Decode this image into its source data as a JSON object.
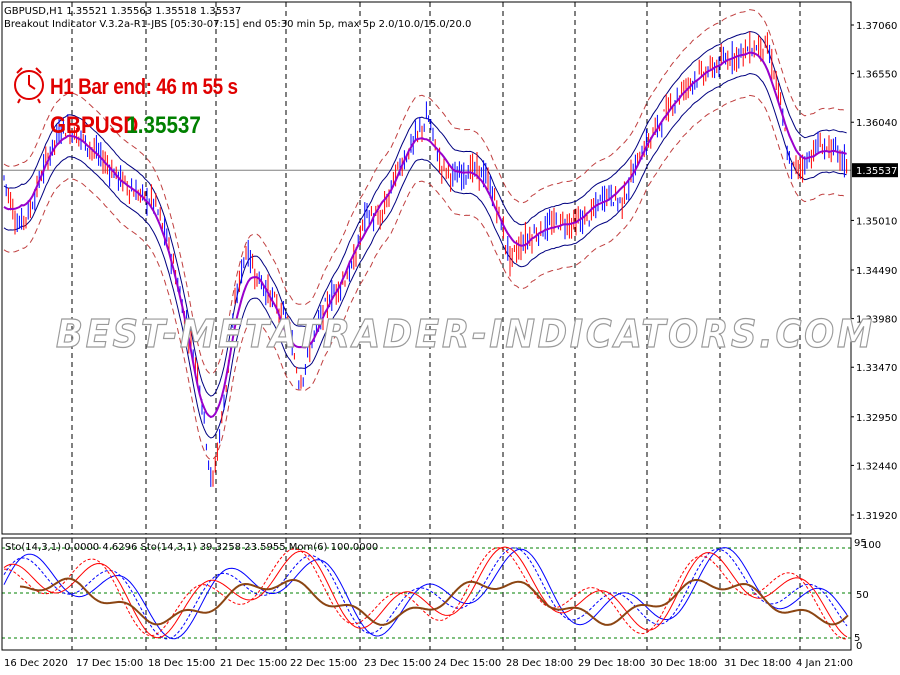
{
  "header": {
    "symbol_line": "GBPUSD,H1  1.35521 1.35563 1.35518 1.35537",
    "indicator_line": "Breakout Indicator V.3.2a-R1-JBS [05:30-07:15] end 05:30 min 5p, max 5p 2.0/10.0/15.0/20.0"
  },
  "overlay": {
    "timer_text": "H1 Bar end: 46 m 55 s",
    "symbol": "GBPUSD",
    "price": "1.35537",
    "clock_icon": "alarm-clock-icon"
  },
  "watermark": "BEST-METATRADER-INDICATORS.COM",
  "price_axis": {
    "labels": [
      "1.37060",
      "1.36550",
      "1.36040",
      "1.35537",
      "1.35010",
      "1.34490",
      "1.33980",
      "1.33470",
      "1.32950",
      "1.32440",
      "1.31920"
    ],
    "current_price": "1.35537"
  },
  "time_axis": {
    "labels": [
      "16 Dec 2020",
      "17 Dec 15:00",
      "18 Dec 15:00",
      "21 Dec 15:00",
      "22 Dec 15:00",
      "23 Dec 15:00",
      "24 Dec 15:00",
      "28 Dec 18:00",
      "29 Dec 18:00",
      "30 Dec 18:00",
      "31 Dec 18:00",
      "4 Jan 21:00"
    ]
  },
  "sub_window": {
    "header": "Sto(14,3,1) 0.0000 4.6296  Sto(14,3,1) 39.3258 23.5955  Mom(6) 100.0000",
    "scale_labels": [
      "95",
      "100",
      "50",
      "5",
      "0"
    ]
  },
  "colors": {
    "bull": "#0000ff",
    "bear": "#ff0000",
    "ma_purple": "#9900cc",
    "band_navy": "#000080",
    "band_dashed": "#c04040",
    "momentum": "#8b4513",
    "level_green": "#008000"
  }
}
